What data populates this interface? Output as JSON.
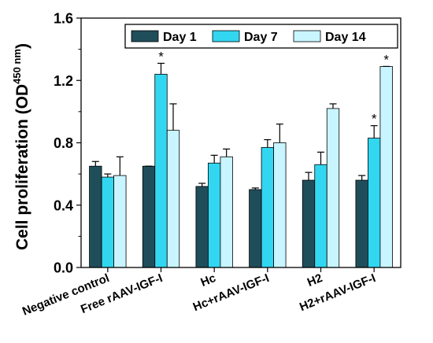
{
  "chart_data": {
    "type": "bar",
    "categories": [
      "Negative control",
      "Free rAAV-IGF-I",
      "Hc",
      "Hc+rAAV-IGF-I",
      "H2",
      "H2+rAAV-IGF-I"
    ],
    "series": [
      {
        "name": "Day 1",
        "color": "#1f4e5a",
        "values": [
          0.65,
          0.65,
          0.52,
          0.5,
          0.56,
          0.56
        ],
        "errors": [
          0.03,
          0.0,
          0.02,
          0.01,
          0.05,
          0.03
        ]
      },
      {
        "name": "Day 7",
        "color": "#33d6f0",
        "values": [
          0.58,
          1.24,
          0.67,
          0.77,
          0.66,
          0.83
        ],
        "errors": [
          0.02,
          0.07,
          0.05,
          0.05,
          0.08,
          0.08
        ]
      },
      {
        "name": "Day 14",
        "color": "#c8f5ff",
        "values": [
          0.59,
          0.88,
          0.71,
          0.8,
          1.02,
          1.29
        ],
        "errors": [
          0.12,
          0.17,
          0.05,
          0.12,
          0.03,
          0.0
        ]
      }
    ],
    "annotations": [
      {
        "category": "Free rAAV-IGF-I",
        "series": "Day 7",
        "text": "*"
      },
      {
        "category": "H2+rAAV-IGF-I",
        "series": "Day 7",
        "text": "*"
      },
      {
        "category": "H2+rAAV-IGF-I",
        "series": "Day 14",
        "text": "*"
      }
    ],
    "ylabel": "Cell proliferation (OD",
    "ylabel_sup": "450 nm",
    "ylabel_close": ")",
    "ylim": [
      0.0,
      1.6
    ],
    "yticks": [
      "0.0",
      "0.4",
      "0.8",
      "1.2",
      "1.6"
    ],
    "legend_position": "top-right",
    "grid": false
  }
}
